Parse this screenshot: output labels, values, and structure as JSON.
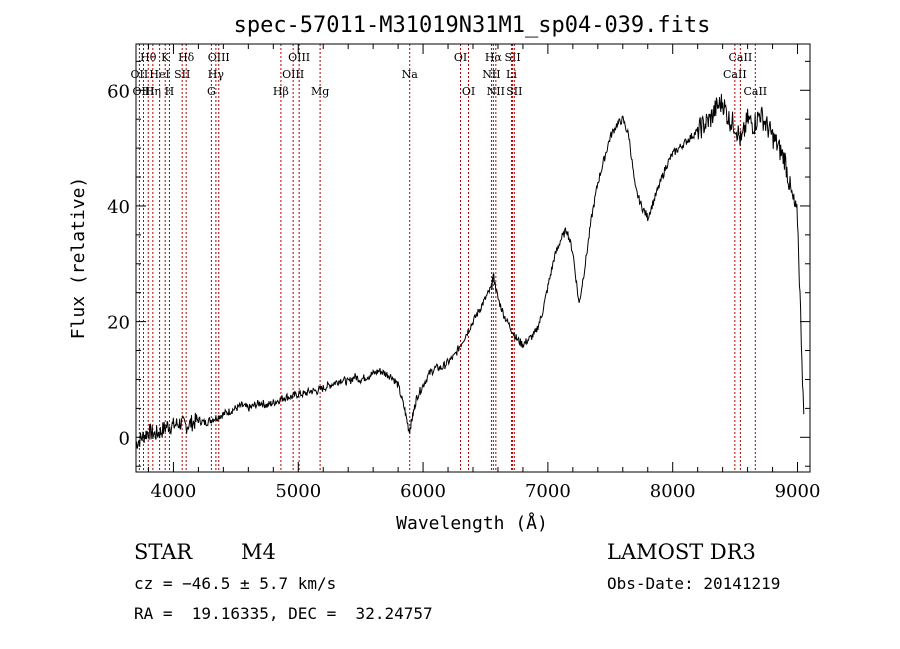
{
  "chart_data": {
    "type": "line",
    "title": "spec-57011-M31019N31M1_sp04-039.fits",
    "xlabel": "Wavelength (Å)",
    "ylabel": "Flux (relative)",
    "xlim": [
      3700,
      9100
    ],
    "ylim": [
      -6,
      68
    ],
    "x_ticks": [
      4000,
      5000,
      6000,
      7000,
      8000,
      9000
    ],
    "y_ticks": [
      0,
      20,
      40,
      60
    ],
    "series": [
      {
        "name": "flux",
        "x": [
          3700,
          3750,
          3800,
          3850,
          3900,
          3950,
          4000,
          4050,
          4100,
          4150,
          4200,
          4250,
          4300,
          4350,
          4400,
          4450,
          4500,
          4550,
          4600,
          4650,
          4700,
          4750,
          4800,
          4850,
          4900,
          4950,
          5000,
          5050,
          5100,
          5150,
          5200,
          5250,
          5300,
          5350,
          5400,
          5450,
          5500,
          5550,
          5600,
          5650,
          5700,
          5750,
          5800,
          5850,
          5890,
          5920,
          5950,
          6000,
          6050,
          6100,
          6150,
          6200,
          6250,
          6300,
          6350,
          6400,
          6450,
          6500,
          6550,
          6563,
          6600,
          6650,
          6700,
          6750,
          6800,
          6850,
          6900,
          6950,
          7000,
          7050,
          7100,
          7150,
          7200,
          7250,
          7300,
          7350,
          7400,
          7450,
          7500,
          7550,
          7600,
          7650,
          7700,
          7750,
          7800,
          7850,
          7900,
          7950,
          8000,
          8050,
          8100,
          8150,
          8200,
          8250,
          8300,
          8350,
          8400,
          8450,
          8500,
          8550,
          8600,
          8650,
          8700,
          8750,
          8800,
          8850,
          8900,
          8950,
          9000,
          9050
        ],
        "values": [
          -1,
          0,
          1,
          0.5,
          1,
          2,
          2,
          2.5,
          2,
          2.5,
          3,
          2.5,
          3,
          3.5,
          4,
          4.5,
          5,
          5.5,
          5,
          5.5,
          6,
          5.5,
          6,
          6.5,
          7,
          7,
          7.5,
          7.5,
          8,
          8,
          8.5,
          9,
          9.5,
          10,
          9.5,
          10.5,
          10,
          10.5,
          11,
          11.5,
          11,
          10.5,
          9,
          5,
          1,
          4,
          7,
          9,
          11,
          12,
          12,
          13,
          14,
          16,
          18,
          20,
          22,
          24,
          26,
          28,
          24,
          21,
          19,
          17,
          16,
          17,
          18,
          21,
          26,
          31,
          34,
          36,
          32,
          23,
          30,
          38,
          44,
          48,
          52,
          54,
          55,
          52,
          43,
          40,
          38,
          41,
          44,
          47,
          49,
          50,
          51,
          52,
          53,
          54,
          55,
          57,
          58,
          55,
          54,
          51,
          55,
          54,
          56,
          54,
          52,
          50,
          48,
          42,
          38,
          4
        ]
      }
    ],
    "lines": [
      {
        "name": "Hθ",
        "wl": 3798,
        "row": 0,
        "color": "#b30000"
      },
      {
        "name": "OII",
        "wl": 3727,
        "row": 1,
        "color": "#b30000"
      },
      {
        "name": "OIII",
        "wl": 3760,
        "row": 2,
        "color": "#b30000"
      },
      {
        "name": "Hη",
        "wl": 3835,
        "row": 2,
        "color": "#b30000"
      },
      {
        "name": "HeI",
        "wl": 3889,
        "row": 1,
        "color": "#b30000"
      },
      {
        "name": "K",
        "wl": 3934,
        "row": 0,
        "color": "#b30000"
      },
      {
        "name": "H",
        "wl": 3968,
        "row": 2,
        "color": "#b30000"
      },
      {
        "name": "SII",
        "wl": 4070,
        "row": 1,
        "color": "#b30000"
      },
      {
        "name": "Hδ",
        "wl": 4102,
        "row": 0,
        "color": "#b30000"
      },
      {
        "name": "OIII",
        "wl": 4363,
        "row": 0,
        "color": "#b30000"
      },
      {
        "name": "Hγ",
        "wl": 4340,
        "row": 1,
        "color": "#b30000"
      },
      {
        "name": "G",
        "wl": 4304,
        "row": 2,
        "color": "#b30000"
      },
      {
        "name": "Hβ",
        "wl": 4861,
        "row": 2,
        "color": "#b30000"
      },
      {
        "name": "OIII",
        "wl": 5007,
        "row": 0,
        "color": "#b30000"
      },
      {
        "name": "OIII",
        "wl": 4959,
        "row": 1,
        "color": "#b30000"
      },
      {
        "name": "Mg",
        "wl": 5175,
        "row": 2,
        "color": "#b30000"
      },
      {
        "name": "Na",
        "wl": 5893,
        "row": 1,
        "color": "#b30000"
      },
      {
        "name": "OI",
        "wl": 6300,
        "row": 0,
        "color": "#b30000"
      },
      {
        "name": "OI",
        "wl": 6364,
        "row": 2,
        "color": "#b30000"
      },
      {
        "name": "Hα",
        "wl": 6563,
        "row": 0,
        "color": "#b30000"
      },
      {
        "name": "NII",
        "wl": 6548,
        "row": 1,
        "color": "#b30000"
      },
      {
        "name": "NII",
        "wl": 6583,
        "row": 2,
        "color": "#b30000"
      },
      {
        "name": "SII",
        "wl": 6717,
        "row": 0,
        "color": "#b30000"
      },
      {
        "name": "Li",
        "wl": 6708,
        "row": 1,
        "color": "#b30000"
      },
      {
        "name": "SII",
        "wl": 6731,
        "row": 2,
        "color": "#b30000"
      },
      {
        "name": "CaII",
        "wl": 8542,
        "row": 0,
        "color": "#b30000"
      },
      {
        "name": "CaII",
        "wl": 8498,
        "row": 1,
        "color": "#b30000"
      },
      {
        "name": "CaII",
        "wl": 8662,
        "row": 2,
        "color": "#b30000"
      }
    ]
  },
  "info": {
    "class": "STAR",
    "subclass": "M4",
    "survey": "LAMOST DR3",
    "cz": "cz = −46.5 ± 5.7 km/s",
    "obs_date": "Obs-Date: 20141219",
    "coords": "RA =  19.16335, DEC =  32.24757"
  }
}
